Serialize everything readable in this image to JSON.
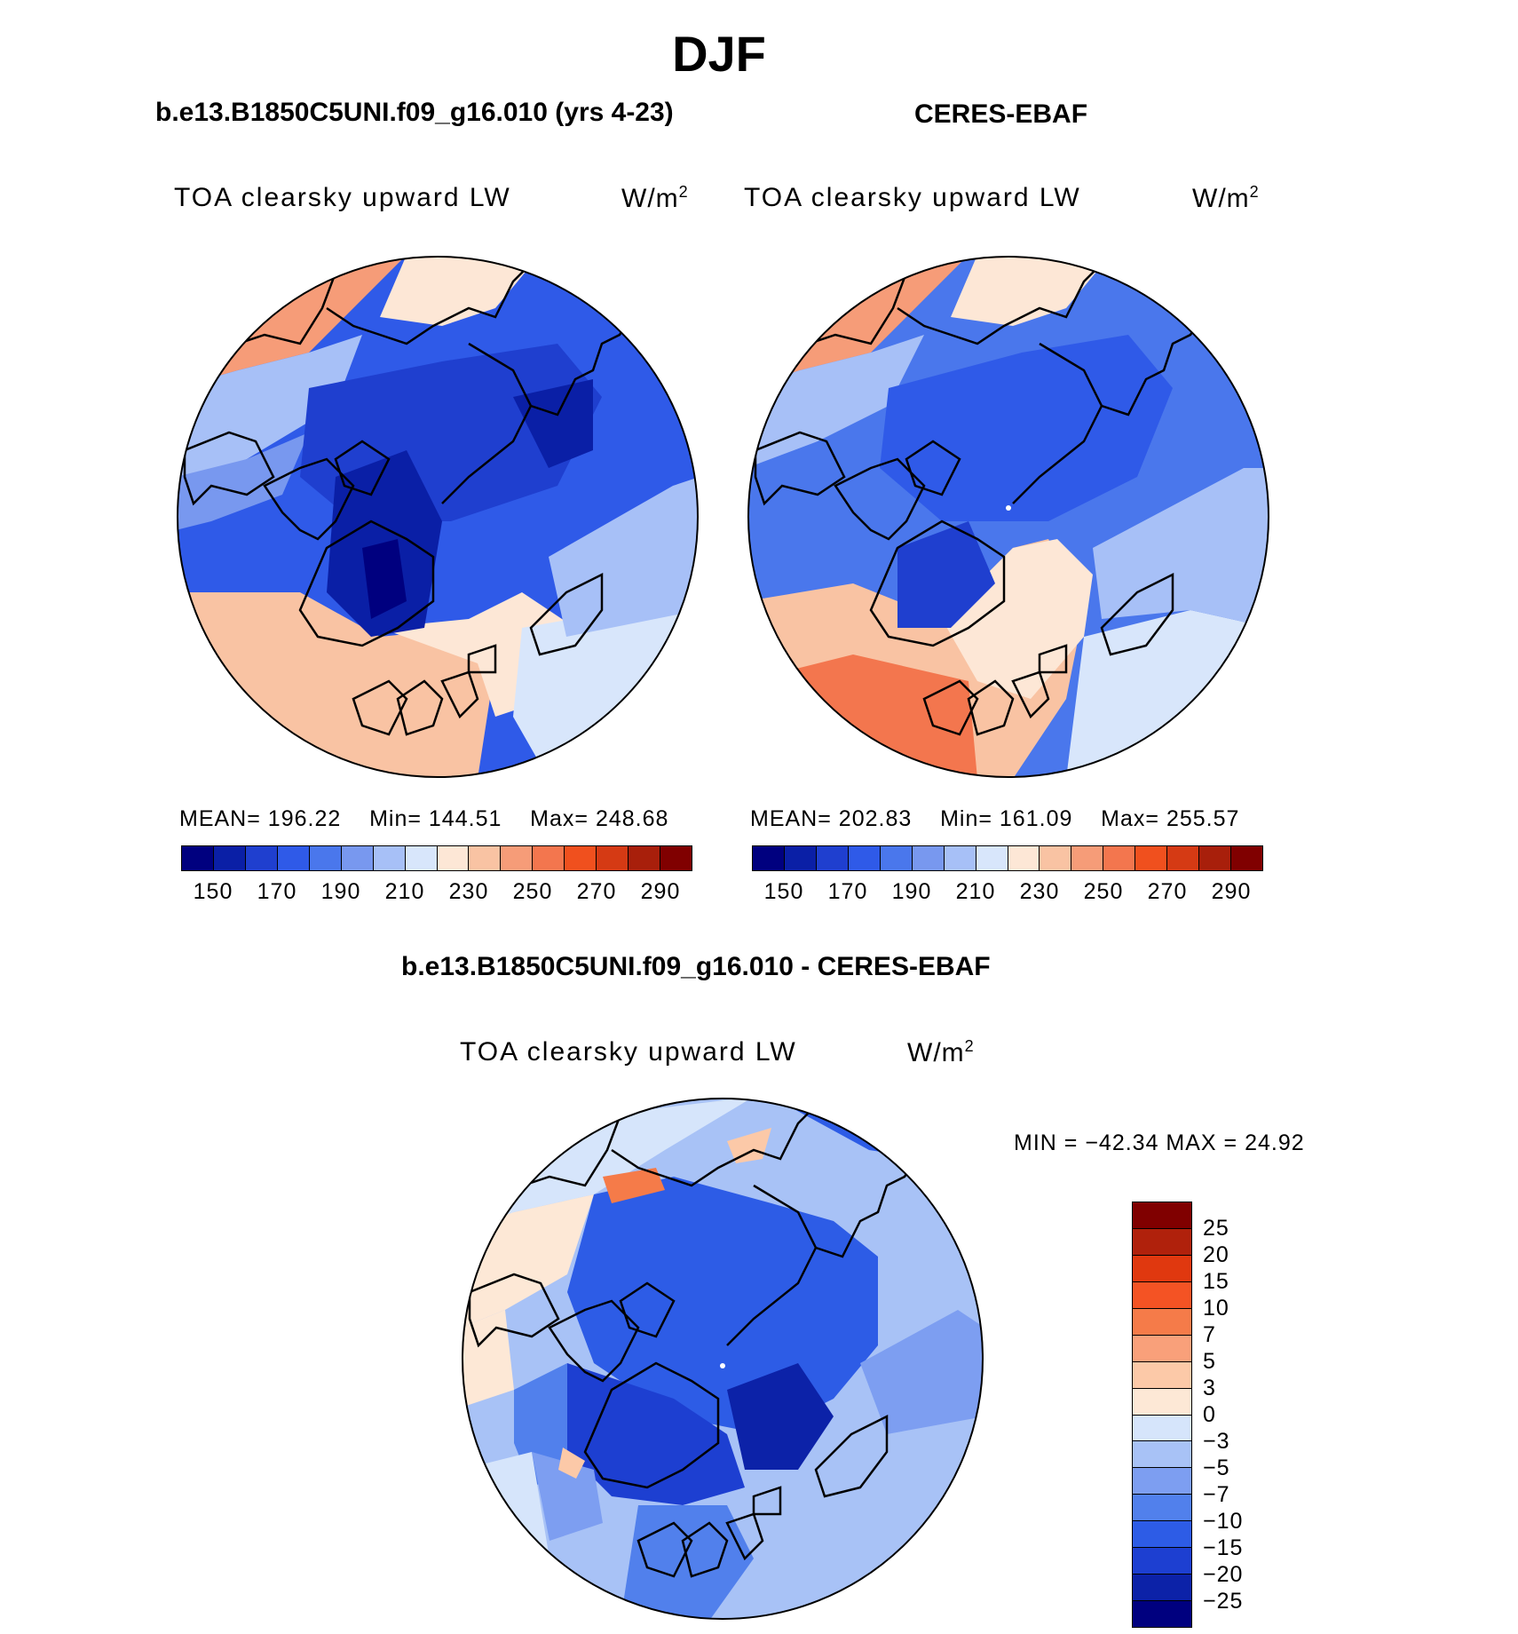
{
  "title": "DJF",
  "panels": [
    {
      "header": "b.e13.B1850C5UNI.f09_g16.010 (yrs 4-23)",
      "label": "TOA clearsky upward LW",
      "units": "W/m",
      "units_exp": "2",
      "stats": {
        "mean_label": "MEAN=",
        "mean": "196.22",
        "min_label": "Min=",
        "min": "144.51",
        "max_label": "Max=",
        "max": "248.68"
      }
    },
    {
      "header": "CERES-EBAF",
      "label": "TOA clearsky upward LW",
      "units": "W/m",
      "units_exp": "2",
      "stats": {
        "mean_label": "MEAN=",
        "mean": "202.83",
        "min_label": "Min=",
        "min": "161.09",
        "max_label": "Max=",
        "max": "255.57"
      }
    }
  ],
  "colorbar_top": {
    "ticks": [
      "150",
      "170",
      "190",
      "210",
      "230",
      "250",
      "270",
      "290"
    ],
    "colors": [
      "#00007f",
      "#0a1fa6",
      "#1f3fcf",
      "#2f5ae8",
      "#4a77ec",
      "#7898ef",
      "#a7c0f7",
      "#d8e6fb",
      "#fde7d6",
      "#f9c3a3",
      "#f69c78",
      "#f3764e",
      "#f0501e",
      "#d53a14",
      "#a81f0b",
      "#800000"
    ]
  },
  "difference": {
    "header": "b.e13.B1850C5UNI.f09_g16.010 - CERES-EBAF",
    "label": "TOA clearsky upward LW",
    "units": "W/m",
    "units_exp": "2",
    "minmax": "MIN = −42.34 MAX =  24.92",
    "colorbar": {
      "ticks": [
        "25",
        "20",
        "15",
        "10",
        "7",
        "5",
        "3",
        "0",
        "−3",
        "−5",
        "−7",
        "−10",
        "−15",
        "−20",
        "−25"
      ],
      "colors": [
        "#800000",
        "#b0210c",
        "#e0380f",
        "#f45324",
        "#f57b49",
        "#f9a07a",
        "#fcc9a8",
        "#fde8d6",
        "#d6e5fb",
        "#a8c2f6",
        "#7d9ef1",
        "#5180ec",
        "#2d5ce6",
        "#1d3fd1",
        "#0c22a8",
        "#00007f"
      ]
    }
  },
  "map_colors": {
    "coast": "#000000",
    "ocean_deep": "#1f3fcf",
    "ocean_mid": "#2f5ae8",
    "land_cold": "#0a1fa6",
    "warm_1": "#fde7d6",
    "warm_2": "#f9c3a3",
    "warm_3": "#f69c78"
  }
}
